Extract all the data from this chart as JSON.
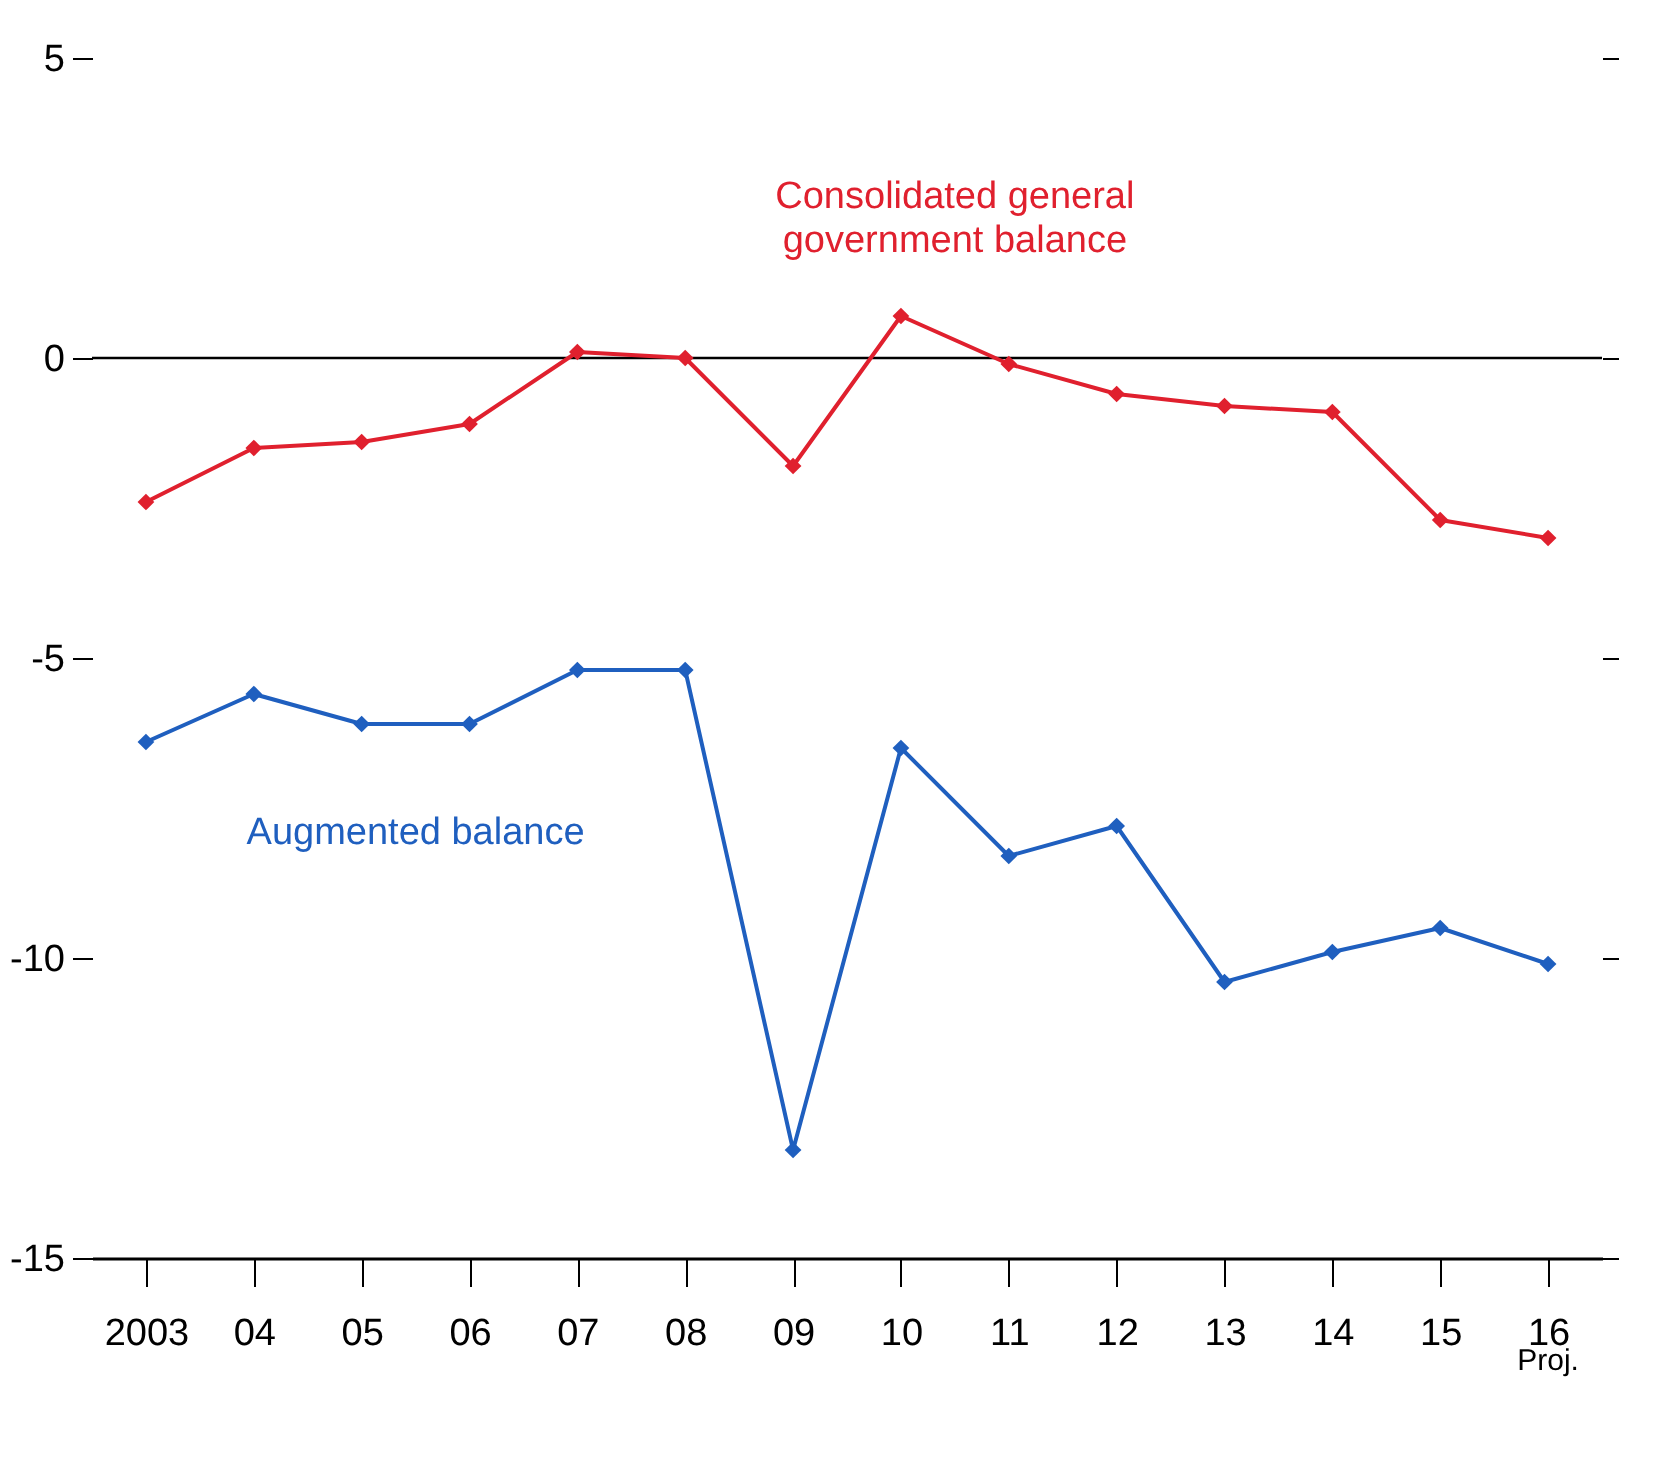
{
  "chart_data": {
    "type": "line",
    "categories": [
      "2003",
      "04",
      "05",
      "06",
      "07",
      "08",
      "09",
      "10",
      "11",
      "12",
      "13",
      "14",
      "15",
      "16"
    ],
    "series": [
      {
        "name": "Consolidated general government balance",
        "color": "#e0202e",
        "values": [
          -2.4,
          -1.5,
          -1.4,
          -1.1,
          0.1,
          0,
          -1.8,
          0.7,
          -0.1,
          -0.6,
          -0.8,
          -0.9,
          -2.7,
          -3.0
        ]
      },
      {
        "name": "Augmented balance",
        "color": "#1f5fbf",
        "values": [
          -6.4,
          -5.6,
          -6.1,
          -6.1,
          -5.2,
          -5.2,
          -13.2,
          -6.5,
          -8.3,
          -7.8,
          -10.4,
          -9.9,
          -9.5,
          -10.1
        ]
      }
    ],
    "ylim": [
      -15,
      5
    ],
    "yticks": [
      -15,
      -10,
      -5,
      0,
      5
    ],
    "grid": false,
    "legend": false,
    "marker": "diamond",
    "line_style": "solid",
    "ref_lines": [
      {
        "axis": "y",
        "value": 0,
        "color": "#000000"
      }
    ],
    "annotations": [
      "Proj."
    ]
  }
}
